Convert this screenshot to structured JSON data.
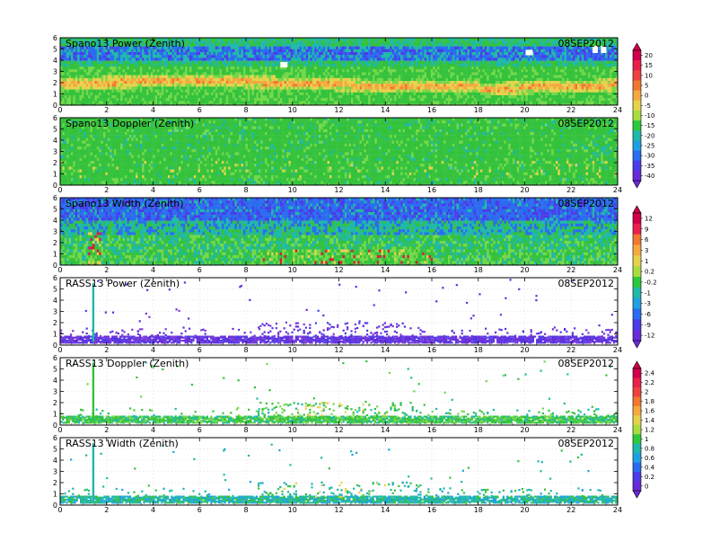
{
  "chart_data": [
    {
      "type": "heatmap",
      "title": "Spano13 Power (Zenith)",
      "date": "08SEP2012",
      "x": {
        "range": [
          0,
          24
        ],
        "ticks": [
          "0",
          "2",
          "4",
          "6",
          "8",
          "10",
          "12",
          "14",
          "16",
          "18",
          "20",
          "22",
          "24"
        ]
      },
      "y": {
        "range": [
          0,
          6
        ],
        "ticks": [
          "0",
          "1",
          "2",
          "3",
          "4",
          "5",
          "6"
        ]
      },
      "pattern": "dense",
      "band_center_y": 2.0,
      "notes": "Bright band (0 to 15) near 2 km, green (~-15) below 4 km, blue (~-30) near 4.5-5 km"
    },
    {
      "type": "heatmap",
      "title": "Spano13 Doppler (Zenith)",
      "date": "08SEP2012",
      "x": {
        "range": [
          0,
          24
        ],
        "ticks": [
          "0",
          "2",
          "4",
          "6",
          "8",
          "10",
          "12",
          "14",
          "16",
          "18",
          "20",
          "22",
          "24"
        ]
      },
      "y": {
        "range": [
          0,
          6
        ],
        "ticks": [
          "0",
          "1",
          "2",
          "3",
          "4",
          "5",
          "6"
        ]
      },
      "pattern": "dense",
      "notes": "Nearly uniform green (~0) field"
    },
    {
      "type": "heatmap",
      "title": "Spano13 Width (Zenith)",
      "date": "08SEP2012",
      "x": {
        "range": [
          0,
          24
        ],
        "ticks": [
          "0",
          "2",
          "4",
          "6",
          "8",
          "10",
          "12",
          "14",
          "16",
          "18",
          "20",
          "22",
          "24"
        ]
      },
      "y": {
        "range": [
          0,
          6
        ],
        "ticks": [
          "0",
          "1",
          "2",
          "3",
          "4",
          "5",
          "6"
        ]
      },
      "pattern": "dense",
      "notes": "Blue upper levels, green/teal below, red/yellow hot spots near 1 km around hours 9-16"
    },
    {
      "type": "heatmap",
      "title": "RASS13 Power (Zenith)",
      "date": "08SEP2012",
      "x": {
        "range": [
          0,
          24
        ],
        "ticks": [
          "0",
          "2",
          "4",
          "6",
          "8",
          "10",
          "12",
          "14",
          "16",
          "18",
          "20",
          "22",
          "24"
        ]
      },
      "y": {
        "range": [
          0,
          6
        ],
        "ticks": [
          "0",
          "1",
          "2",
          "3",
          "4",
          "5",
          "6"
        ]
      },
      "pattern": "sparse",
      "notes": "Purple dots concentrated below 1 km, denser hours 9-14"
    },
    {
      "type": "heatmap",
      "title": "RASS13 Doppler (Zenith)",
      "date": "08SEP2012",
      "x": {
        "range": [
          0,
          24
        ],
        "ticks": [
          "0",
          "2",
          "4",
          "6",
          "8",
          "10",
          "12",
          "14",
          "16",
          "18",
          "20",
          "22",
          "24"
        ]
      },
      "y": {
        "range": [
          0,
          6
        ],
        "ticks": [
          "0",
          "1",
          "2",
          "3",
          "4",
          "5",
          "6"
        ]
      },
      "pattern": "sparse",
      "notes": "Green/cyan dots below 1 km, some yellow hours 10-14"
    },
    {
      "type": "heatmap",
      "title": "RASS13 Width (Zenith)",
      "date": "08SEP2012",
      "x": {
        "range": [
          0,
          24
        ],
        "ticks": [
          "0",
          "2",
          "4",
          "6",
          "8",
          "10",
          "12",
          "14",
          "16",
          "18",
          "20",
          "22",
          "24"
        ]
      },
      "y": {
        "range": [
          0,
          6
        ],
        "ticks": [
          "0",
          "1",
          "2",
          "3",
          "4",
          "5",
          "6"
        ]
      },
      "pattern": "sparse",
      "notes": "Cyan/green dots below 1 km"
    }
  ],
  "colorbars": [
    {
      "labels": [
        "20",
        "15",
        "10",
        "5",
        "0",
        "-5",
        "-10",
        "-15",
        "-20",
        "-25",
        "-30",
        "-35",
        "-40"
      ],
      "colors": [
        "#d0004a",
        "#e8204c",
        "#f04040",
        "#f07830",
        "#f4a840",
        "#e6d24c",
        "#a8dc40",
        "#2ec83c",
        "#20b8a8",
        "#20a0e0",
        "#2a6cf0",
        "#4a3ce8",
        "#6a2ad8"
      ]
    },
    {
      "labels": [
        "12",
        "9",
        "6",
        "3",
        "1",
        "0.2",
        "-0.2",
        "-1",
        "-3",
        "-6",
        "-9",
        "-12"
      ],
      "colors": [
        "#d0004a",
        "#e8204c",
        "#f07830",
        "#f4a840",
        "#e6d24c",
        "#a8dc40",
        "#2ec83c",
        "#20b8a8",
        "#20a0e0",
        "#2a6cf0",
        "#4a3ce8",
        "#6a2ad8"
      ]
    },
    {
      "labels": [
        "2.4",
        "2.2",
        "2",
        "1.8",
        "1.6",
        "1.4",
        "1.2",
        "1",
        "0.8",
        "0.6",
        "0.4",
        "0.2",
        "0"
      ],
      "colors": [
        "#d0004a",
        "#e8204c",
        "#f04040",
        "#f07830",
        "#f4a840",
        "#e6d24c",
        "#a8dc40",
        "#2ec83c",
        "#20b8a8",
        "#20a0e0",
        "#2a6cf0",
        "#4a3ce8",
        "#6a2ad8"
      ]
    }
  ],
  "palette": {
    "power_band": [
      "#e6d24c",
      "#f4a840",
      "#f0c84c"
    ],
    "green": "#34c23c",
    "green_light": "#74d84a",
    "teal": "#20b8a8",
    "blue": "#2a6cf0",
    "purple": "#6a2ad8",
    "red": "#d81e3a",
    "yellow": "#e6d24c"
  }
}
